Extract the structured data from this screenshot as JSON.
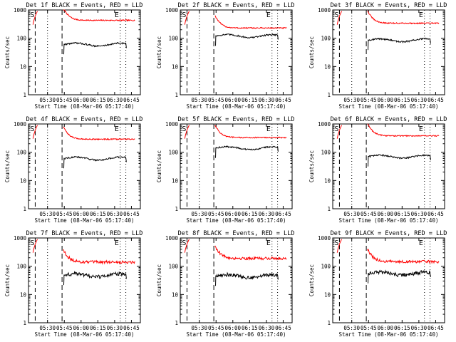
{
  "chart_data": [
    {
      "type": "line",
      "title": "Det 1f BLACK = Events, RED = LLD",
      "xlabel": "Start Time (08-Mar-06 05:17:40)",
      "ylabel": "Counts/sec",
      "yscale": "log",
      "ylim": [
        1,
        1000
      ],
      "xticks": [
        "05:30",
        "05:45",
        "06:00",
        "06:15",
        "06:30",
        "06:45"
      ],
      "yticks": [
        "1",
        "10",
        "100",
        "1000"
      ],
      "markers": [
        "S",
        "E"
      ],
      "series": [
        {
          "color": "#ff0000",
          "level": 430
        },
        {
          "color": "#000000",
          "level": 60
        }
      ]
    },
    {
      "type": "line",
      "title": "Det 2f BLACK = Events, RED = LLD",
      "xlabel": "Start Time (08-Mar-06 05:17:40)",
      "ylabel": "Counts/sec",
      "yscale": "log",
      "ylim": [
        1,
        1000
      ],
      "xticks": [
        "05:30",
        "05:45",
        "06:00",
        "06:15",
        "06:30",
        "06:45"
      ],
      "yticks": [
        "1",
        "10",
        "100",
        "1000"
      ],
      "markers": [
        "S",
        "E"
      ],
      "series": [
        {
          "color": "#ff0000",
          "level": 230
        },
        {
          "color": "#000000",
          "level": 120
        }
      ]
    },
    {
      "type": "line",
      "title": "Det 3f BLACK = Events, RED = LLD",
      "xlabel": "Start Time (08-Mar-06 05:17:40)",
      "ylabel": "Counts/sec",
      "yscale": "log",
      "ylim": [
        1,
        1000
      ],
      "xticks": [
        "05:30",
        "05:45",
        "06:00",
        "06:15",
        "06:30",
        "06:45"
      ],
      "yticks": [
        "1",
        "10",
        "100",
        "1000"
      ],
      "markers": [
        "S",
        "E"
      ],
      "series": [
        {
          "color": "#ff0000",
          "level": 340
        },
        {
          "color": "#000000",
          "level": 85
        }
      ]
    },
    {
      "type": "line",
      "title": "Det 4f BLACK = Events, RED = LLD",
      "xlabel": "Start Time (08-Mar-06 05:17:40)",
      "ylabel": "Counts/sec",
      "yscale": "log",
      "ylim": [
        1,
        1000
      ],
      "xticks": [
        "05:30",
        "05:45",
        "06:00",
        "06:15",
        "06:30",
        "06:45"
      ],
      "yticks": [
        "1",
        "10",
        "100",
        "1000"
      ],
      "markers": [
        "S",
        "E"
      ],
      "series": [
        {
          "color": "#ff0000",
          "level": 290
        },
        {
          "color": "#000000",
          "level": 60
        }
      ]
    },
    {
      "type": "line",
      "title": "Det 5f BLACK = Events, RED = LLD",
      "xlabel": "Start Time (08-Mar-06 05:17:40)",
      "ylabel": "Counts/sec",
      "yscale": "log",
      "ylim": [
        1,
        1000
      ],
      "xticks": [
        "05:30",
        "05:45",
        "06:00",
        "06:15",
        "06:30",
        "06:45"
      ],
      "yticks": [
        "1",
        "10",
        "100",
        "1000"
      ],
      "markers": [
        "S",
        "E"
      ],
      "series": [
        {
          "color": "#ff0000",
          "level": 330
        },
        {
          "color": "#000000",
          "level": 140
        }
      ]
    },
    {
      "type": "line",
      "title": "Det 6f BLACK = Events, RED = LLD",
      "xlabel": "Start Time (08-Mar-06 05:17:40)",
      "ylabel": "Counts/sec",
      "yscale": "log",
      "ylim": [
        1,
        1000
      ],
      "xticks": [
        "05:30",
        "05:45",
        "06:00",
        "06:15",
        "06:30",
        "06:45"
      ],
      "yticks": [
        "1",
        "10",
        "100",
        "1000"
      ],
      "markers": [
        "S",
        "E"
      ],
      "series": [
        {
          "color": "#ff0000",
          "level": 380
        },
        {
          "color": "#000000",
          "level": 70
        }
      ]
    },
    {
      "type": "line",
      "title": "Det 7f BLACK = Events, RED = LLD",
      "xlabel": "Start Time (08-Mar-06 05:17:40)",
      "ylabel": "Counts/sec",
      "yscale": "log",
      "ylim": [
        1,
        1000
      ],
      "xticks": [
        "05:30",
        "05:45",
        "06:00",
        "06:15",
        "06:30",
        "06:45"
      ],
      "yticks": [
        "1",
        "10",
        "100",
        "1000"
      ],
      "markers": [
        "S",
        "E"
      ],
      "series": [
        {
          "color": "#ff0000",
          "level": 140
        },
        {
          "color": "#000000",
          "level": 48
        }
      ]
    },
    {
      "type": "line",
      "title": "Det 8f BLACK = Events, RED = LLD",
      "xlabel": "Start Time (08-Mar-06 05:17:40)",
      "ylabel": "Counts/sec",
      "yscale": "log",
      "ylim": [
        1,
        1000
      ],
      "xticks": [
        "05:30",
        "05:45",
        "06:00",
        "06:15",
        "06:30",
        "06:45"
      ],
      "yticks": [
        "1",
        "10",
        "100",
        "1000"
      ],
      "markers": [
        "S",
        "E"
      ],
      "series": [
        {
          "color": "#ff0000",
          "level": 190
        },
        {
          "color": "#000000",
          "level": 45
        }
      ]
    },
    {
      "type": "line",
      "title": "Det 9f BLACK = Events, RED = LLD",
      "xlabel": "Start Time (08-Mar-06 05:17:40)",
      "ylabel": "Counts/sec",
      "yscale": "log",
      "ylim": [
        1,
        1000
      ],
      "xticks": [
        "05:30",
        "05:45",
        "06:00",
        "06:15",
        "06:30",
        "06:45"
      ],
      "yticks": [
        "1",
        "10",
        "100",
        "1000"
      ],
      "markers": [
        "S",
        "E"
      ],
      "series": [
        {
          "color": "#ff0000",
          "level": 145
        },
        {
          "color": "#000000",
          "level": 55
        }
      ]
    }
  ]
}
